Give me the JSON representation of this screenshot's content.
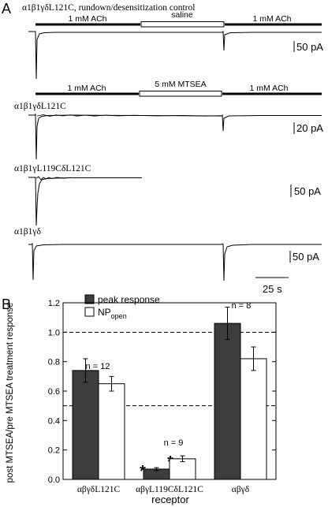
{
  "panel_a": {
    "label": "A",
    "control": {
      "title": "α1β1γδL121C, rundown/desensitization control",
      "bar_left": "1 mM ACh",
      "bar_middle": "saline",
      "bar_right": "1 mM ACh",
      "scale": "50 pA"
    },
    "treatment_bars": {
      "left": "1 mM ACh",
      "middle": "5 mM MTSEA",
      "right": "1 mM ACh"
    },
    "traces": [
      {
        "label": "α1β1γδL121C",
        "scale": "20 pA"
      },
      {
        "label": "α1β1γL119CδL121C",
        "scale": "50 pA"
      },
      {
        "label": "α1β1γδ",
        "scale": "50 pA"
      }
    ],
    "time_scale": "25 s"
  },
  "panel_b": {
    "label": "B",
    "n_labels": [
      "n = 12",
      "n = 9",
      "n = 8"
    ],
    "significance": "*"
  },
  "chart_data": {
    "type": "bar",
    "categories": [
      "αβγδL121C",
      "αβγL119CδL121C",
      "αβγδ"
    ],
    "series": [
      {
        "name": "peak response",
        "values": [
          0.74,
          0.07,
          1.06
        ],
        "errors": [
          0.08,
          0.01,
          0.11
        ],
        "color": "#3d3d3d"
      },
      {
        "name": "NP_open",
        "values": [
          0.65,
          0.14,
          0.82
        ],
        "errors": [
          0.05,
          0.02,
          0.08
        ],
        "color": "#ffffff"
      }
    ],
    "ylabel": "post MTSEA/pre MTSEA treatment response",
    "xlabel": "receptor",
    "ylim": [
      0,
      1.2
    ],
    "yticks": [
      "0.0",
      "0.2",
      "0.4",
      "0.6",
      "0.8",
      "1.0",
      "1.2"
    ],
    "reference_lines": [
      1.0,
      0.5
    ],
    "legend": {
      "peak": "peak response",
      "np_main": "NP",
      "np_sub": "open"
    },
    "legend_position": "top-left"
  }
}
